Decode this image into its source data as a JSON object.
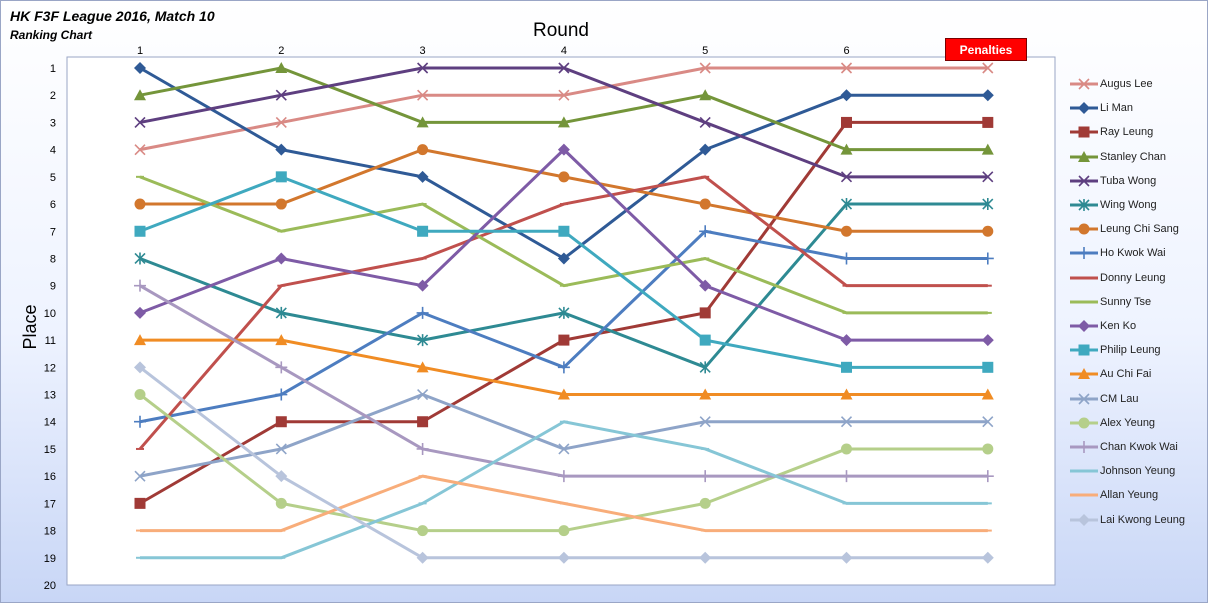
{
  "title": "HK F3F League 2016, Match 10",
  "subtitle": "Ranking Chart",
  "penalties_label": "Penalties",
  "chart_data": {
    "type": "line",
    "xlabel": "Round",
    "ylabel": "Place",
    "categories": [
      "1",
      "2",
      "3",
      "4",
      "5",
      "6",
      "Penalties"
    ],
    "ylim": [
      1,
      20
    ],
    "y_inverted": true,
    "y_ticks": [
      1,
      2,
      3,
      4,
      5,
      6,
      7,
      8,
      9,
      10,
      11,
      12,
      13,
      14,
      15,
      16,
      17,
      18,
      19,
      20
    ],
    "grid": false,
    "legend_position": "right",
    "series": [
      {
        "name": "Augus Lee",
        "color": "#d98a85",
        "marker": "x",
        "values": [
          4,
          3,
          2,
          2,
          1,
          1,
          1
        ]
      },
      {
        "name": "Li Man",
        "color": "#2f5a96",
        "marker": "diamond",
        "values": [
          1,
          4,
          5,
          8,
          4,
          2,
          2
        ]
      },
      {
        "name": "Ray Leung",
        "color": "#a03a36",
        "marker": "square",
        "values": [
          17,
          14,
          14,
          11,
          10,
          3,
          3
        ]
      },
      {
        "name": "Stanley Chan",
        "color": "#74953a",
        "marker": "triangle",
        "values": [
          2,
          1,
          3,
          3,
          2,
          4,
          4
        ]
      },
      {
        "name": "Tuba Wong",
        "color": "#5e3f80",
        "marker": "x",
        "values": [
          3,
          2,
          1,
          1,
          3,
          5,
          5
        ]
      },
      {
        "name": "Wing Wong",
        "color": "#2e8a93",
        "marker": "asterisk",
        "values": [
          8,
          10,
          11,
          10,
          12,
          6,
          6
        ]
      },
      {
        "name": "Leung Chi Sang",
        "color": "#d2772d",
        "marker": "circle",
        "values": [
          6,
          6,
          4,
          5,
          6,
          7,
          7
        ]
      },
      {
        "name": "Ho Kwok Wai",
        "color": "#4d7dc0",
        "marker": "plus",
        "values": [
          14,
          13,
          10,
          12,
          7,
          8,
          8
        ]
      },
      {
        "name": "Donny Leung",
        "color": "#c0504d",
        "marker": "none",
        "values": [
          15,
          9,
          8,
          6,
          5,
          9,
          9
        ]
      },
      {
        "name": "Sunny Tse",
        "color": "#9bbb59",
        "marker": "none",
        "values": [
          5,
          7,
          6,
          9,
          8,
          10,
          10
        ]
      },
      {
        "name": "Ken Ko",
        "color": "#7e5ba6",
        "marker": "diamond",
        "values": [
          10,
          8,
          9,
          4,
          9,
          11,
          11
        ]
      },
      {
        "name": "Philip Leung",
        "color": "#3fa9bf",
        "marker": "square",
        "values": [
          7,
          5,
          7,
          7,
          11,
          12,
          12
        ]
      },
      {
        "name": "Au Chi Fai",
        "color": "#f08c24",
        "marker": "triangle",
        "values": [
          11,
          11,
          12,
          13,
          13,
          13,
          13
        ]
      },
      {
        "name": "CM Lau",
        "color": "#8ea4c8",
        "marker": "x",
        "values": [
          16,
          15,
          13,
          15,
          14,
          14,
          14
        ]
      },
      {
        "name": "Alex Yeung",
        "color": "#b5cf8a",
        "marker": "circle",
        "values": [
          13,
          17,
          18,
          18,
          17,
          15,
          15
        ]
      },
      {
        "name": "Chan Kwok Wai",
        "color": "#a898c0",
        "marker": "plus",
        "values": [
          9,
          12,
          15,
          16,
          16,
          16,
          16
        ]
      },
      {
        "name": "Johnson Yeung",
        "color": "#86c6d6",
        "marker": "none",
        "values": [
          19,
          19,
          17,
          14,
          15,
          17,
          17
        ]
      },
      {
        "name": "Allan Yeung",
        "color": "#f8ad7a",
        "marker": "none",
        "values": [
          18,
          18,
          16,
          17,
          18,
          18,
          18
        ]
      },
      {
        "name": "Lai Kwong Leung",
        "color": "#b8c4dc",
        "marker": "diamond",
        "values": [
          12,
          16,
          19,
          19,
          19,
          19,
          19
        ]
      }
    ]
  }
}
